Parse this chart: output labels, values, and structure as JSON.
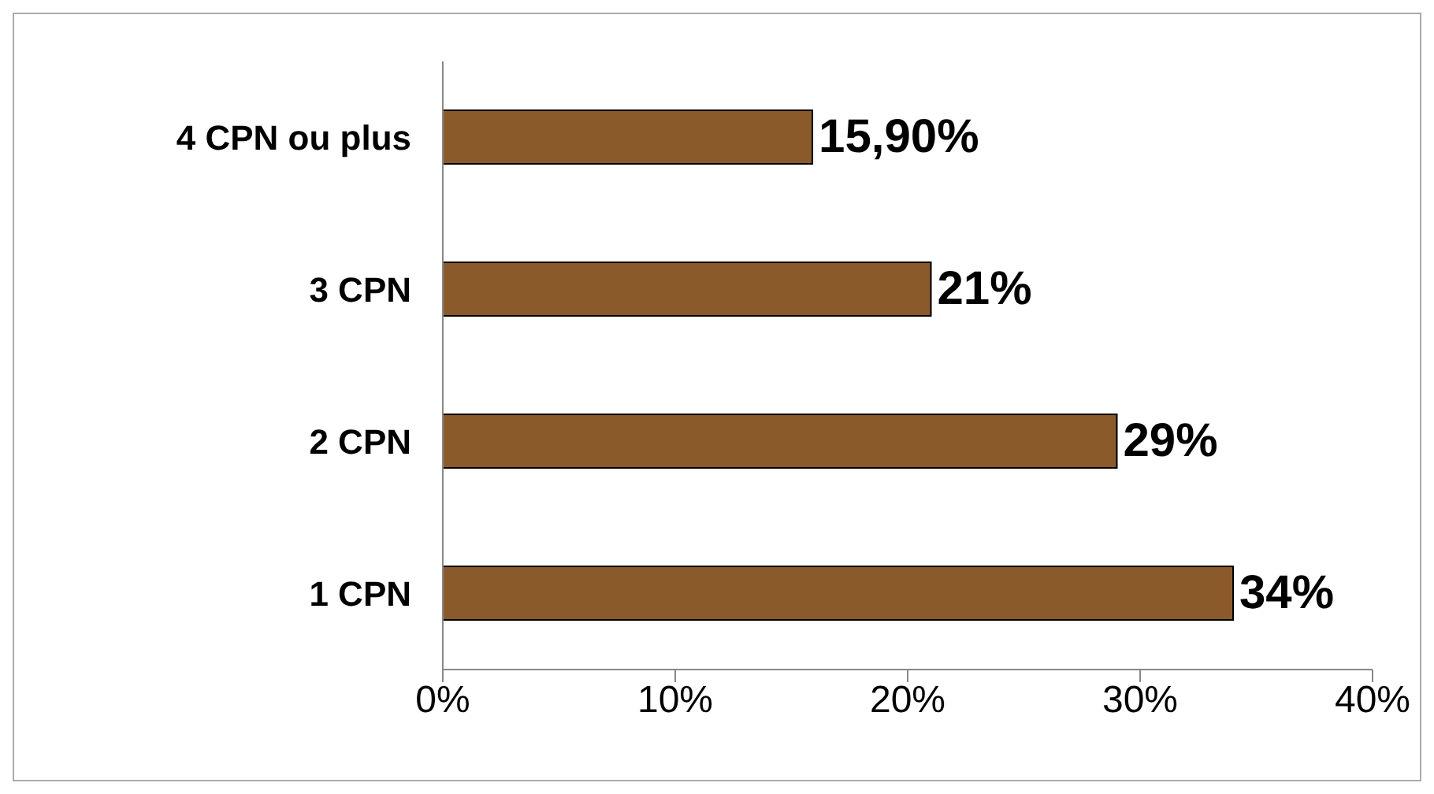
{
  "chart_data": {
    "type": "bar",
    "orientation": "horizontal",
    "categories": [
      "4 CPN ou plus",
      "3 CPN",
      "2 CPN",
      "1 CPN"
    ],
    "values": [
      15.9,
      21,
      29,
      34
    ],
    "value_labels": [
      "15,90%",
      "21%",
      "29%",
      "34%"
    ],
    "color": "#8b5a2b",
    "xlim": [
      0,
      40
    ],
    "xticks": [
      {
        "value": 0,
        "label": "0%"
      },
      {
        "value": 10,
        "label": "10%"
      },
      {
        "value": 20,
        "label": "20%"
      },
      {
        "value": 30,
        "label": "30%"
      },
      {
        "value": 40,
        "label": "40%"
      }
    ],
    "grid": false,
    "legend": false
  }
}
